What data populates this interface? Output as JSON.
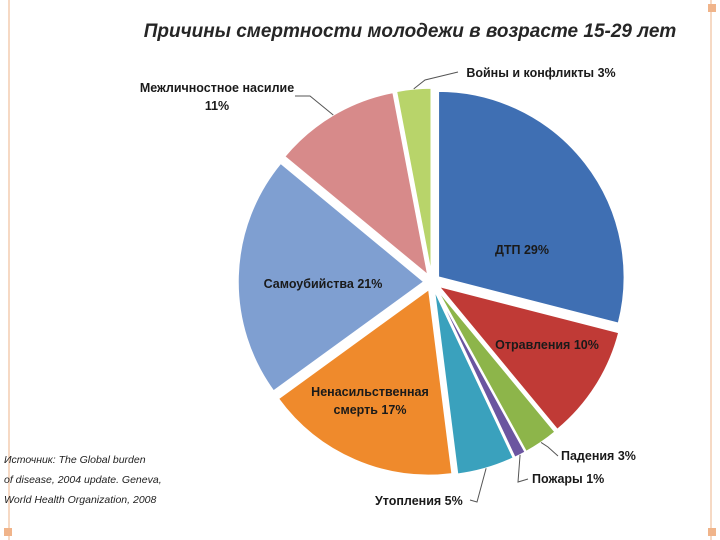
{
  "colors": {
    "dtp": "#3f6fb3",
    "otravlenia": "#c03a36",
    "padenia": "#8db54a",
    "pozhary": "#6b55a0",
    "utoplenia": "#3aa1bd",
    "nenasil": "#ef8a2c",
    "samoubiystva": "#7f9fd1",
    "mezhlichn": "#d78a8a",
    "voyny": "#b8d46a"
  },
  "source": {
    "line1": "Источник: The Global burden",
    "line2": "of disease, 2004 update. Geneva,",
    "line3": "World Health Organization, 2008"
  },
  "chart_data": {
    "type": "pie",
    "title": "Причины смертности молодежи в возрасте 15-29 лет",
    "unit": "%",
    "slices": [
      {
        "key": "dtp",
        "label": "ДТП 29%",
        "value": 29
      },
      {
        "key": "otravlenia",
        "label": "Отравления 10%",
        "value": 10
      },
      {
        "key": "padenia",
        "label": "Падения 3%",
        "value": 3
      },
      {
        "key": "pozhary",
        "label": "Пожары 1%",
        "value": 1
      },
      {
        "key": "utoplenia",
        "label": "Утопления 5%",
        "value": 5
      },
      {
        "key": "nenasil",
        "label_line1": "Ненасильственная",
        "label_line2": "смерть 17%",
        "value": 17
      },
      {
        "key": "samoubiystva",
        "label": "Самоубийства 21%",
        "value": 21
      },
      {
        "key": "mezhlichn",
        "label_line1": "Межличностное насилие",
        "label_line2": "11%",
        "value": 11
      },
      {
        "key": "voyny",
        "label": "Войны и конфликты 3%",
        "value": 3
      }
    ]
  }
}
